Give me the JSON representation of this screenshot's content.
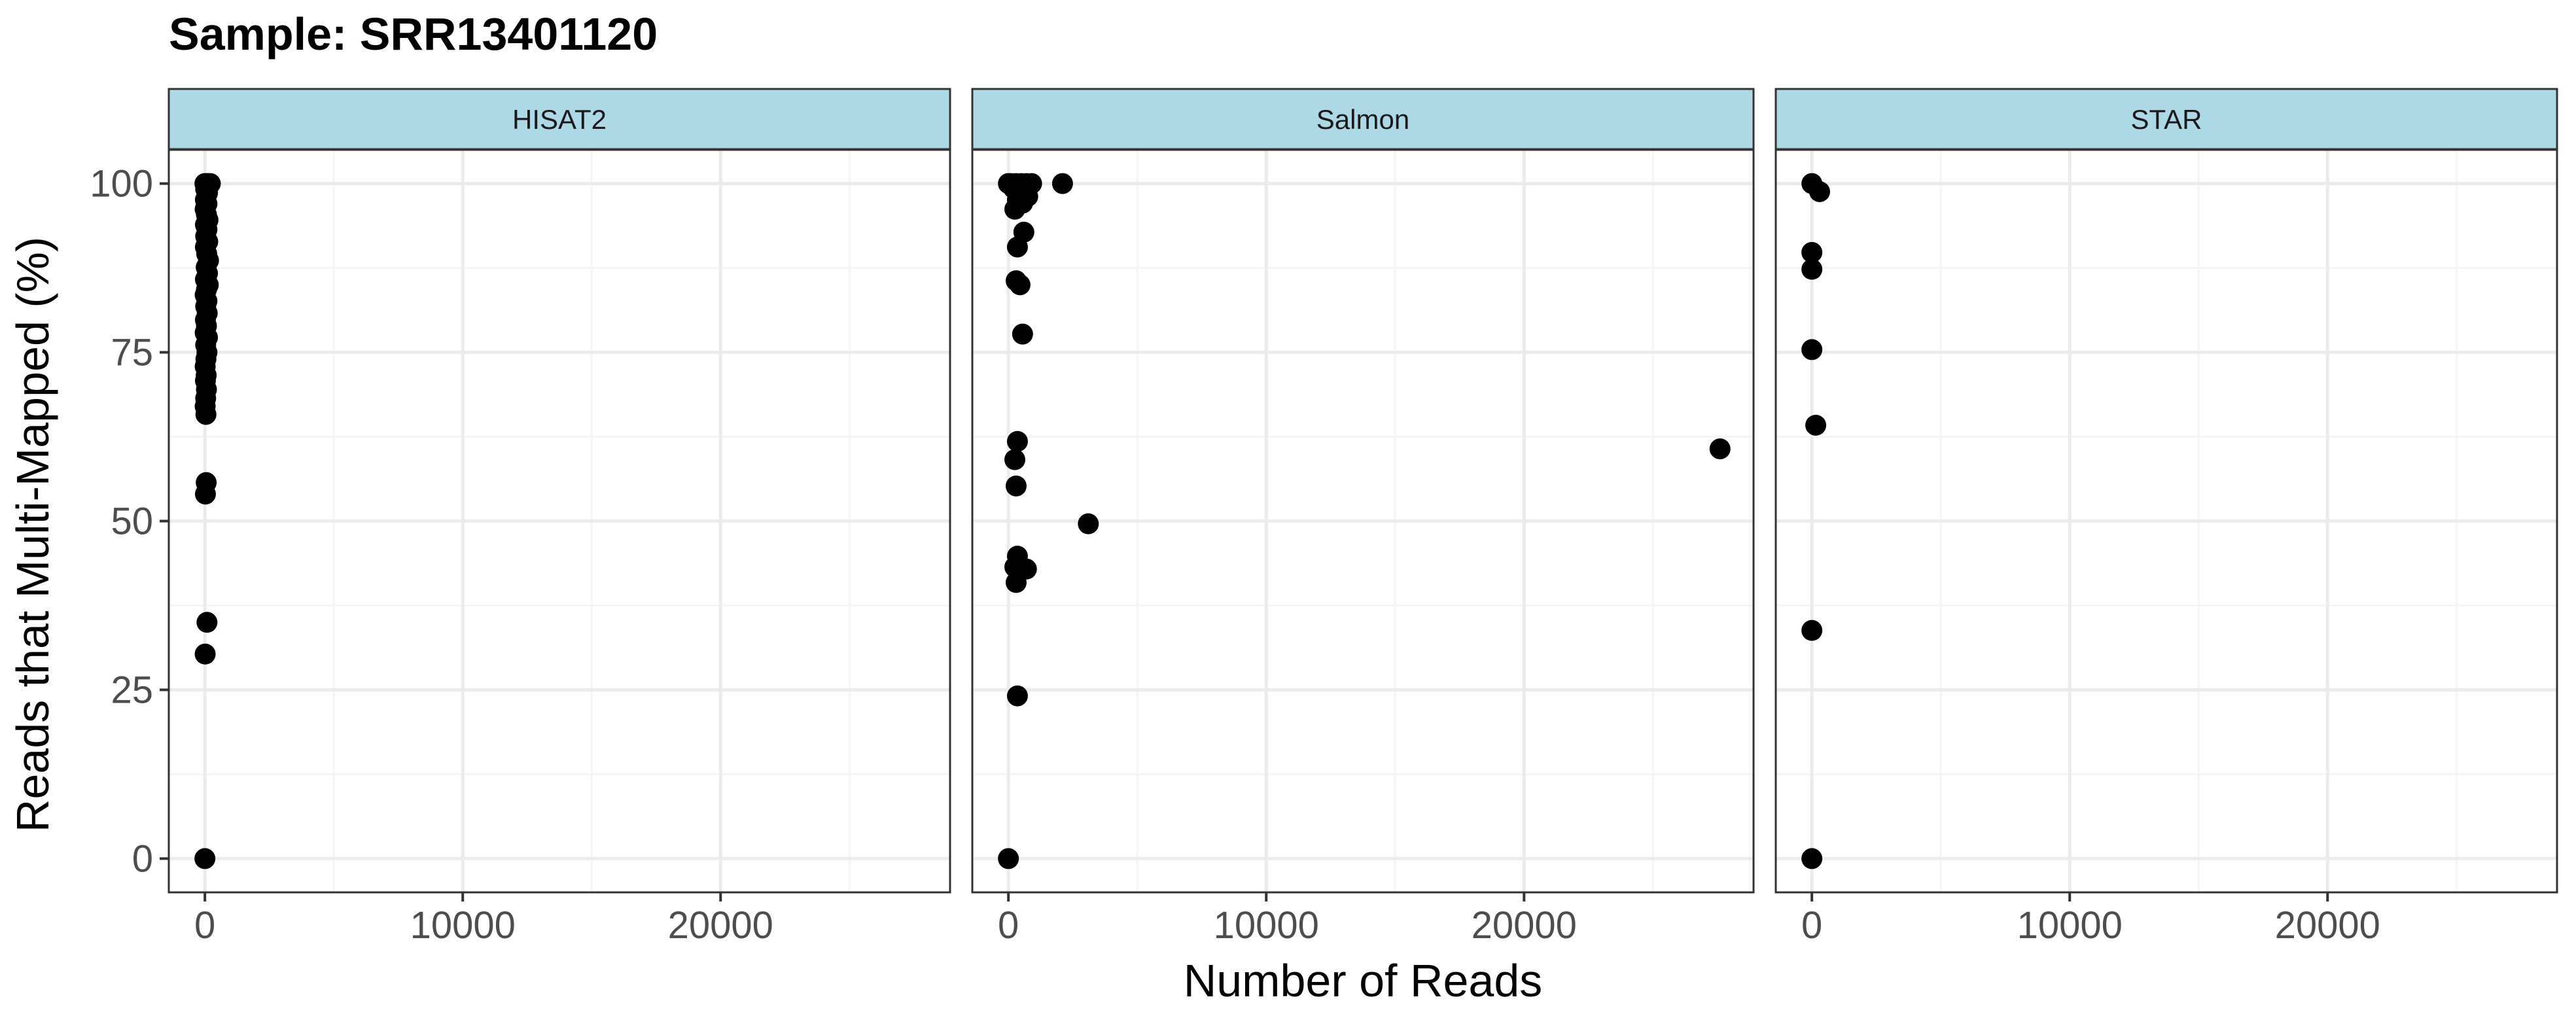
{
  "chart_data": {
    "type": "scatter",
    "title": "Sample: SRR13401120",
    "xlabel": "Number of Reads",
    "ylabel": "Reads that Multi-Mapped (%)",
    "xlim": [
      -1400,
      28900
    ],
    "ylim": [
      -5,
      105
    ],
    "x_ticks": [
      0,
      10000,
      20000
    ],
    "x_tick_labels": [
      "0",
      "10000",
      "20000"
    ],
    "y_ticks": [
      0,
      25,
      50,
      75,
      100
    ],
    "y_tick_labels": [
      "0",
      "25",
      "50",
      "75",
      "100"
    ],
    "grid": true,
    "legend": "none",
    "colors": {
      "point": "#000000",
      "strip_fill": "#add8e6",
      "panel_border": "#333333",
      "grid_major": "#ebebeb",
      "grid_minor": "#f5f5f5"
    },
    "facets": [
      {
        "label": "HISAT2",
        "points": [
          [
            0,
            100
          ],
          [
            60,
            100
          ],
          [
            140,
            100
          ],
          [
            210,
            100
          ],
          [
            30,
            99.2
          ],
          [
            100,
            98.6
          ],
          [
            20,
            97.6
          ],
          [
            80,
            97.0
          ],
          [
            10,
            96.2
          ],
          [
            60,
            95.4
          ],
          [
            120,
            94.6
          ],
          [
            20,
            93.9
          ],
          [
            80,
            93.2
          ],
          [
            30,
            92.2
          ],
          [
            110,
            91.4
          ],
          [
            20,
            90.6
          ],
          [
            70,
            89.6
          ],
          [
            140,
            88.6
          ],
          [
            50,
            87.6
          ],
          [
            100,
            86.7
          ],
          [
            20,
            85.8
          ],
          [
            130,
            85.0
          ],
          [
            60,
            84.3
          ],
          [
            10,
            83.5
          ],
          [
            80,
            82.6
          ],
          [
            30,
            81.8
          ],
          [
            90,
            80.8
          ],
          [
            20,
            79.8
          ],
          [
            60,
            78.9
          ],
          [
            10,
            77.9
          ],
          [
            100,
            77.2
          ],
          [
            30,
            76.1
          ],
          [
            80,
            75.0
          ],
          [
            40,
            74.0
          ],
          [
            10,
            72.9
          ],
          [
            50,
            71.6
          ],
          [
            20,
            70.8
          ],
          [
            60,
            69.5
          ],
          [
            30,
            68.2
          ],
          [
            10,
            67.0
          ],
          [
            40,
            65.8
          ],
          [
            50,
            55.7
          ],
          [
            20,
            54.0
          ],
          [
            80,
            35.0
          ],
          [
            10,
            30.3
          ],
          [
            0,
            0
          ]
        ]
      },
      {
        "label": "Salmon",
        "points": [
          [
            0,
            100
          ],
          [
            100,
            100
          ],
          [
            300,
            100
          ],
          [
            500,
            100
          ],
          [
            700,
            100
          ],
          [
            900,
            100
          ],
          [
            2100,
            100
          ],
          [
            200,
            99.3
          ],
          [
            450,
            98.7
          ],
          [
            750,
            98.1
          ],
          [
            350,
            97.6
          ],
          [
            550,
            97.1
          ],
          [
            250,
            96.2
          ],
          [
            600,
            92.8
          ],
          [
            350,
            90.6
          ],
          [
            300,
            85.6
          ],
          [
            450,
            85.0
          ],
          [
            550,
            77.7
          ],
          [
            350,
            61.8
          ],
          [
            250,
            59.1
          ],
          [
            3100,
            49.6
          ],
          [
            300,
            55.2
          ],
          [
            350,
            44.8
          ],
          [
            250,
            43.2
          ],
          [
            450,
            42.6
          ],
          [
            700,
            42.9
          ],
          [
            300,
            40.9
          ],
          [
            350,
            24.1
          ],
          [
            0,
            0
          ],
          [
            27600,
            60.7
          ]
        ]
      },
      {
        "label": "STAR",
        "points": [
          [
            0,
            100
          ],
          [
            300,
            98.8
          ],
          [
            0,
            89.8
          ],
          [
            0,
            87.3
          ],
          [
            0,
            75.4
          ],
          [
            150,
            64.2
          ],
          [
            0,
            33.8
          ],
          [
            0,
            0
          ]
        ]
      }
    ]
  }
}
